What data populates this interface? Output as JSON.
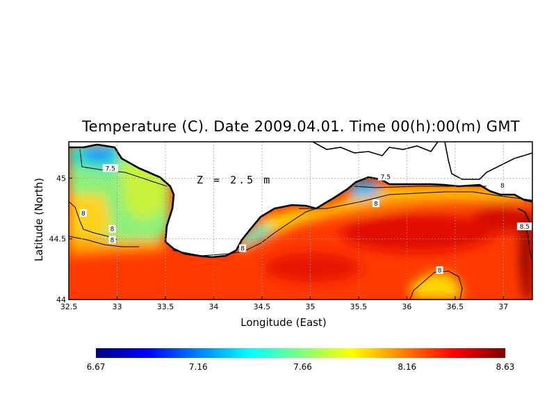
{
  "title": "Temperature (C). Date 2009.04.01. Time 00(h):00(m) GMT",
  "depth_label": "Z = 2.5 m",
  "x_axis": {
    "label": "Longitude (East)",
    "range": [
      32.5,
      37.3
    ],
    "ticks": [
      "32.5",
      "33",
      "33.5",
      "34",
      "34.5",
      "35",
      "35.5",
      "36",
      "36.5",
      "37"
    ]
  },
  "y_axis": {
    "label": "Latitude (North)",
    "range": [
      44.0,
      45.3
    ],
    "ticks": [
      "44",
      "44.5",
      "45"
    ]
  },
  "colorbar": {
    "min": 6.67,
    "max": 8.63,
    "tick_labels": [
      "6.67",
      "7.16",
      "7.66",
      "8.16",
      "8.63"
    ],
    "colors": [
      "#00007f",
      "#0000ff",
      "#0080ff",
      "#00ffff",
      "#80ff80",
      "#ffff00",
      "#ff8000",
      "#ff0000",
      "#7f0000"
    ]
  },
  "contour_labels": [
    {
      "text": "7.5",
      "lon": 32.93,
      "lat": 45.08
    },
    {
      "text": "7.5",
      "lon": 35.78,
      "lat": 45.01
    },
    {
      "text": "8",
      "lon": 32.65,
      "lat": 44.71
    },
    {
      "text": "8",
      "lon": 32.95,
      "lat": 44.58
    },
    {
      "text": "8",
      "lon": 32.95,
      "lat": 44.49
    },
    {
      "text": "8",
      "lon": 34.3,
      "lat": 44.42
    },
    {
      "text": "8",
      "lon": 35.68,
      "lat": 44.79
    },
    {
      "text": "8",
      "lon": 36.99,
      "lat": 44.94
    },
    {
      "text": "8",
      "lon": 36.34,
      "lat": 44.24
    },
    {
      "text": "8.5",
      "lon": 37.22,
      "lat": 44.6
    }
  ],
  "colors": {
    "land": "#ffffff",
    "coastline": "#000000",
    "contour": "#000000",
    "grid": "#9a9a9a"
  }
}
